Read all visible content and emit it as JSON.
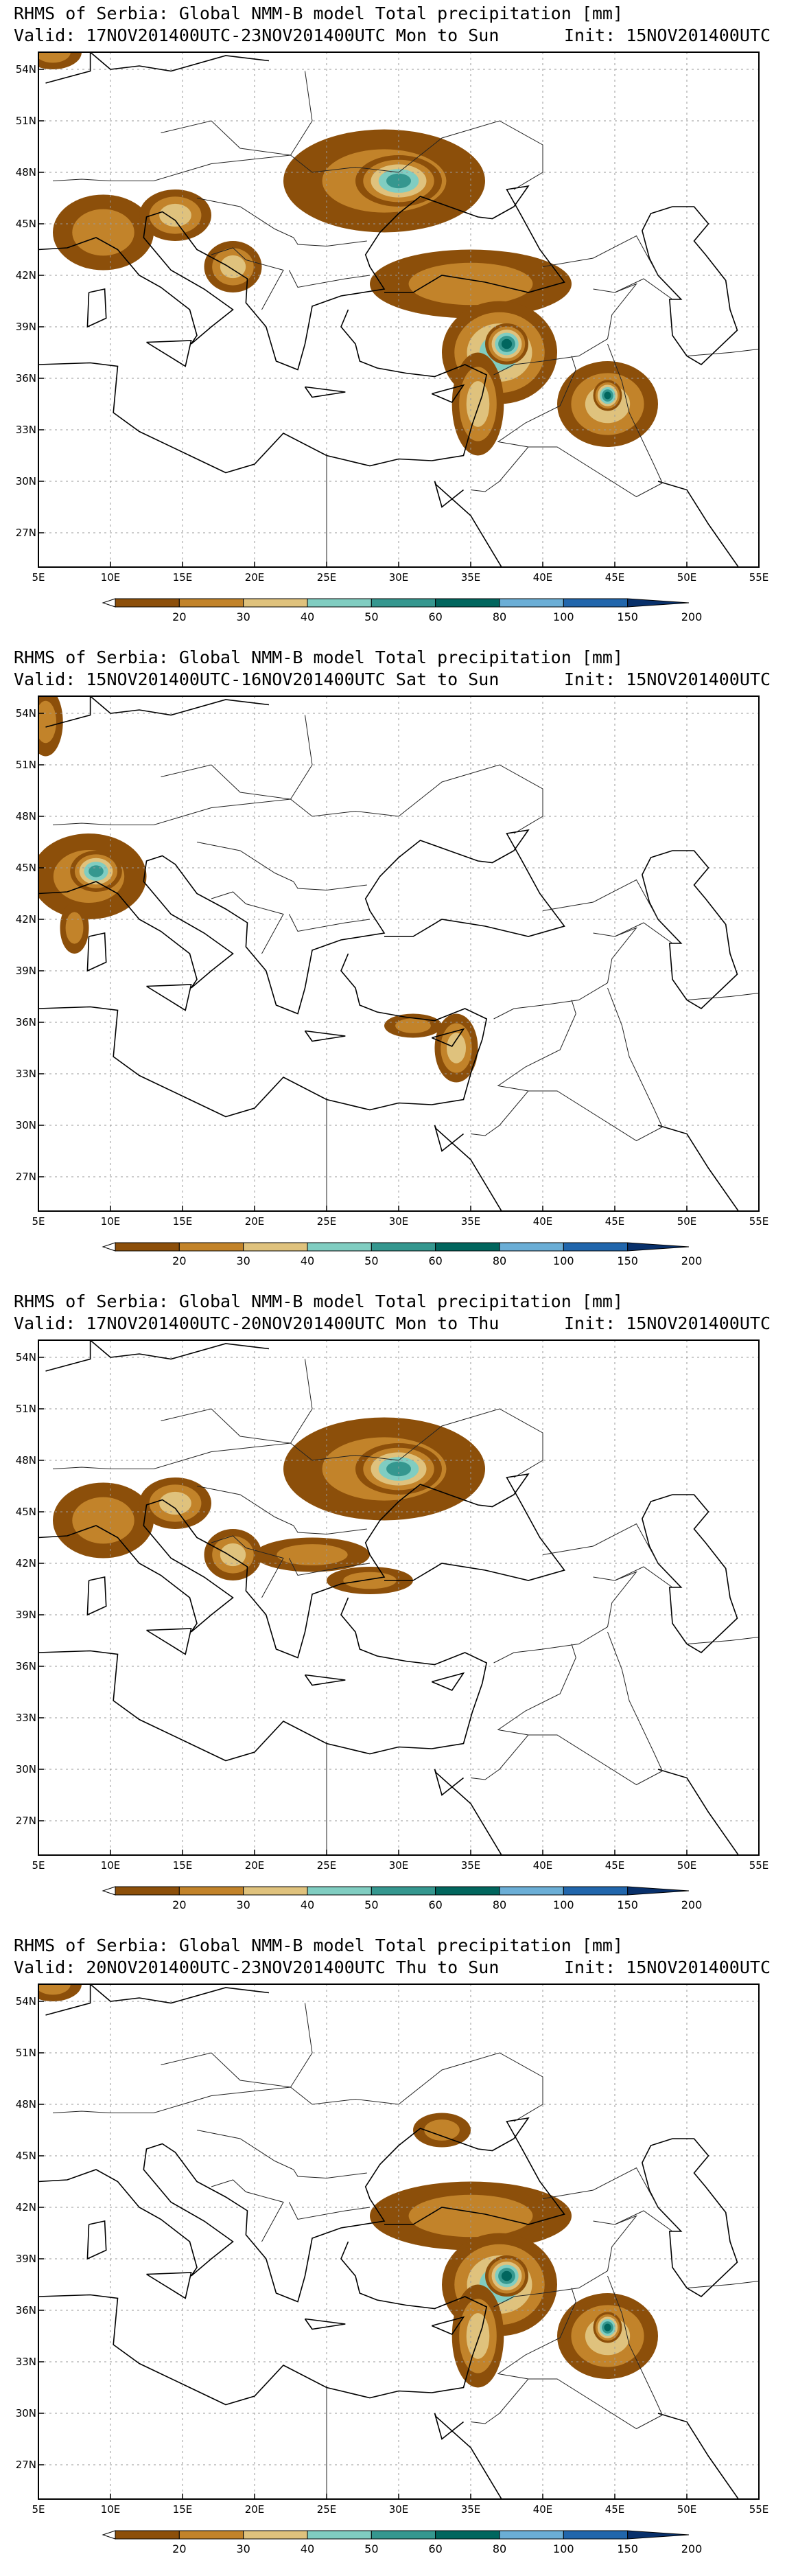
{
  "colors": {
    "levels": [
      "#8c4f0a",
      "#c2832a",
      "#dfc27d",
      "#80cdc1",
      "#35978f",
      "#01665e",
      "#6baed6",
      "#2166ac",
      "#08306b"
    ],
    "coast": "#000000",
    "grid": "#9a9a9a"
  },
  "map": {
    "lon_ticks": [
      "5E",
      "10E",
      "15E",
      "20E",
      "25E",
      "30E",
      "35E",
      "40E",
      "45E",
      "50E",
      "55E"
    ],
    "lat_ticks": [
      "54N",
      "51N",
      "48N",
      "45N",
      "42N",
      "39N",
      "36N",
      "33N",
      "30N",
      "27N"
    ],
    "lon_range": [
      5,
      55
    ],
    "lat_range": [
      25,
      55
    ]
  },
  "colorbar": {
    "labels": [
      "20",
      "30",
      "40",
      "50",
      "60",
      "80",
      "100",
      "150",
      "200"
    ]
  },
  "panels": [
    {
      "title_line1": "RHMS of Serbia: Global NMM-B model Total precipitation [mm]",
      "valid": "Valid: 17NOV201400UTC-23NOV201400UTC Mon to Sun",
      "init": "Init: 15NOV201400UTC",
      "blobs": [
        {
          "lon": 9.5,
          "lat": 44.5,
          "rx": 3.5,
          "ry": 2.2,
          "level": 1
        },
        {
          "lon": 14.5,
          "lat": 45.5,
          "rx": 2.5,
          "ry": 1.5,
          "level": 2
        },
        {
          "lon": 18.5,
          "lat": 42.5,
          "rx": 2.0,
          "ry": 1.5,
          "level": 2
        },
        {
          "lon": 29,
          "lat": 47.5,
          "rx": 7.0,
          "ry": 3.0,
          "level": 1
        },
        {
          "lon": 30,
          "lat": 47.5,
          "rx": 3.0,
          "ry": 1.5,
          "level": 4
        },
        {
          "lon": 35,
          "lat": 41.5,
          "rx": 7.0,
          "ry": 2.0,
          "level": 1
        },
        {
          "lon": 37,
          "lat": 37.5,
          "rx": 4.0,
          "ry": 3.0,
          "level": 3
        },
        {
          "lon": 37.5,
          "lat": 38,
          "rx": 1.5,
          "ry": 1.2,
          "level": 5
        },
        {
          "lon": 35.5,
          "lat": 34.5,
          "rx": 1.8,
          "ry": 3.0,
          "level": 2
        },
        {
          "lon": 44.5,
          "lat": 34.5,
          "rx": 3.5,
          "ry": 2.5,
          "level": 2
        },
        {
          "lon": 44.5,
          "lat": 35,
          "rx": 1.0,
          "ry": 0.9,
          "level": 5
        },
        {
          "lon": 6,
          "lat": 55,
          "rx": 2.0,
          "ry": 1.0,
          "level": 1
        }
      ]
    },
    {
      "title_line1": "RHMS of Serbia: Global NMM-B model Total precipitation [mm]",
      "valid": "Valid: 15NOV201400UTC-16NOV201400UTC Sat to Sun",
      "init": "Init: 15NOV201400UTC",
      "blobs": [
        {
          "lon": 8.5,
          "lat": 44.5,
          "rx": 4.0,
          "ry": 2.5,
          "level": 1
        },
        {
          "lon": 9,
          "lat": 44.8,
          "rx": 1.8,
          "ry": 1.2,
          "level": 4
        },
        {
          "lon": 7.5,
          "lat": 41.5,
          "rx": 1.0,
          "ry": 1.5,
          "level": 1
        },
        {
          "lon": 34,
          "lat": 34.5,
          "rx": 1.5,
          "ry": 2.0,
          "level": 2
        },
        {
          "lon": 31,
          "lat": 35.8,
          "rx": 2.0,
          "ry": 0.7,
          "level": 1
        },
        {
          "lon": 5.5,
          "lat": 53.5,
          "rx": 1.2,
          "ry": 2.0,
          "level": 1
        }
      ]
    },
    {
      "title_line1": "RHMS of Serbia: Global NMM-B model Total precipitation [mm]",
      "valid": "Valid: 17NOV201400UTC-20NOV201400UTC Mon to Thu",
      "init": "Init: 15NOV201400UTC",
      "blobs": [
        {
          "lon": 9.5,
          "lat": 44.5,
          "rx": 3.5,
          "ry": 2.2,
          "level": 1
        },
        {
          "lon": 14.5,
          "lat": 45.5,
          "rx": 2.5,
          "ry": 1.5,
          "level": 2
        },
        {
          "lon": 18.5,
          "lat": 42.5,
          "rx": 2.0,
          "ry": 1.5,
          "level": 2
        },
        {
          "lon": 29,
          "lat": 47.5,
          "rx": 7.0,
          "ry": 3.0,
          "level": 1
        },
        {
          "lon": 30,
          "lat": 47.5,
          "rx": 3.0,
          "ry": 1.5,
          "level": 4
        },
        {
          "lon": 24,
          "lat": 42.5,
          "rx": 4.0,
          "ry": 1.0,
          "level": 1
        },
        {
          "lon": 28,
          "lat": 41,
          "rx": 3.0,
          "ry": 0.8,
          "level": 1
        }
      ]
    },
    {
      "title_line1": "RHMS of Serbia: Global NMM-B model Total precipitation [mm]",
      "valid": "Valid: 20NOV201400UTC-23NOV201400UTC Thu to Sun",
      "init": "Init: 15NOV201400UTC",
      "blobs": [
        {
          "lon": 6,
          "lat": 55,
          "rx": 2.0,
          "ry": 1.0,
          "level": 1
        },
        {
          "lon": 35,
          "lat": 41.5,
          "rx": 7.0,
          "ry": 2.0,
          "level": 1
        },
        {
          "lon": 37,
          "lat": 37.5,
          "rx": 4.0,
          "ry": 3.0,
          "level": 3
        },
        {
          "lon": 37.5,
          "lat": 38,
          "rx": 1.5,
          "ry": 1.2,
          "level": 5
        },
        {
          "lon": 35.5,
          "lat": 34.5,
          "rx": 1.8,
          "ry": 3.0,
          "level": 2
        },
        {
          "lon": 44.5,
          "lat": 34.5,
          "rx": 3.5,
          "ry": 2.5,
          "level": 2
        },
        {
          "lon": 44.5,
          "lat": 35,
          "rx": 1.0,
          "ry": 0.9,
          "level": 5
        },
        {
          "lon": 33,
          "lat": 46.5,
          "rx": 2.0,
          "ry": 1.0,
          "level": 1
        }
      ]
    }
  ]
}
